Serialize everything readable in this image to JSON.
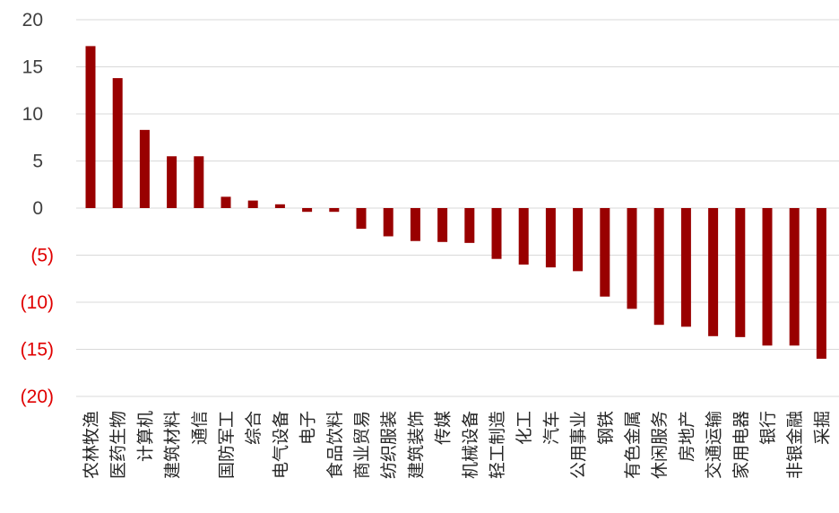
{
  "chart_data": {
    "type": "bar",
    "title": "",
    "xlabel": "",
    "ylabel": "",
    "ylim": [
      -20,
      20
    ],
    "grid": true,
    "legend": "none",
    "bar_color": "#990000",
    "positive_tick_color": "#404040",
    "negative_tick_color": "#e00000",
    "yticks": [
      {
        "value": 20,
        "label": "20"
      },
      {
        "value": 15,
        "label": "15"
      },
      {
        "value": 10,
        "label": "10"
      },
      {
        "value": 5,
        "label": "5"
      },
      {
        "value": 0,
        "label": "0"
      },
      {
        "value": -5,
        "label": "(5)"
      },
      {
        "value": -10,
        "label": "(10)"
      },
      {
        "value": -15,
        "label": "(15)"
      },
      {
        "value": -20,
        "label": "(20)"
      }
    ],
    "categories": [
      "农林牧渔",
      "医药生物",
      "计算机",
      "建筑材料",
      "通信",
      "国防军工",
      "综合",
      "电气设备",
      "电子",
      "食品饮料",
      "商业贸易",
      "纺织服装",
      "建筑装饰",
      "传媒",
      "机械设备",
      "轻工制造",
      "化工",
      "汽车",
      "公用事业",
      "钢铁",
      "有色金属",
      "休闲服务",
      "房地产",
      "交通运输",
      "家用电器",
      "银行",
      "非银金融",
      "采掘"
    ],
    "values": [
      17.2,
      13.8,
      8.3,
      5.5,
      5.5,
      1.2,
      0.8,
      0.4,
      -0.4,
      -0.4,
      -2.2,
      -3.0,
      -3.5,
      -3.6,
      -3.7,
      -5.4,
      -6.0,
      -6.3,
      -6.7,
      -9.4,
      -10.7,
      -12.4,
      -12.6,
      -13.6,
      -13.7,
      -14.6,
      -14.6,
      -16.0
    ]
  }
}
